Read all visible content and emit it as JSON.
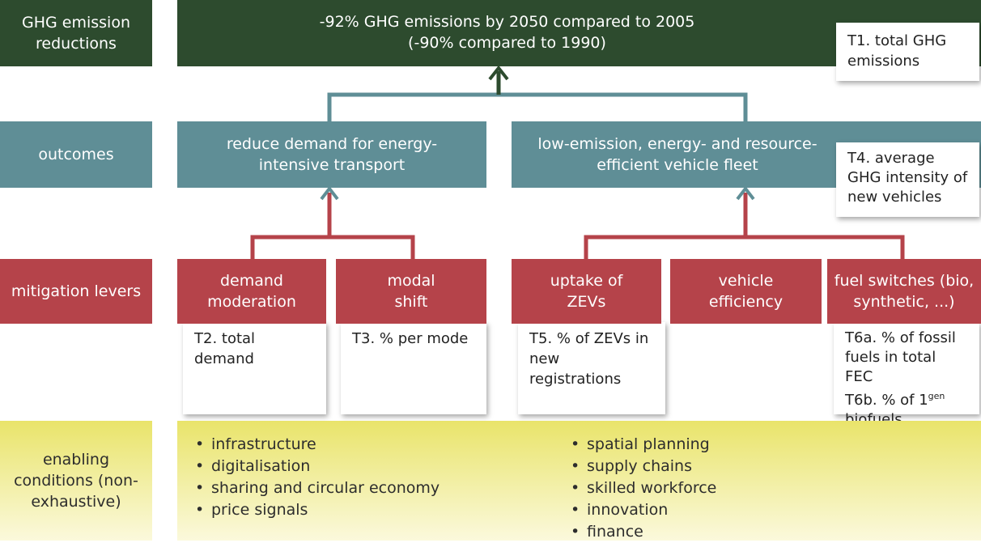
{
  "rows": {
    "ghg": {
      "label": "GHG emission reductions",
      "box": {
        "line1": "-92% GHG emissions by 2050 compared to 2005",
        "line2": "(-90% compared to 1990)"
      },
      "indicator": "T1. total GHG emissions"
    },
    "outcomes": {
      "label": "outcomes",
      "boxes": [
        "reduce demand for energy-intensive transport",
        "low-emission, energy- and resource-efficient vehicle fleet"
      ],
      "indicator": "T4. average GHG intensity of new vehicles"
    },
    "levers": {
      "label": "mitigation levers",
      "boxes": [
        "demand moderation",
        "modal shift",
        "uptake of ZEVs",
        "vehicle efficiency",
        "fuel switches (bio, synthetic, ...)"
      ],
      "indicators": {
        "t2": "T2. total demand",
        "t3": "T3. % per mode",
        "t5": "T5. % of ZEVs in new registrations",
        "t6a": "T6a. % of fossil fuels in total FEC",
        "t6b_pre": "T6b. % of 1",
        "t6b_sup": "gen",
        "t6b_post": "biofuels"
      }
    },
    "enabling": {
      "label": "enabling conditions (non-exhaustive)",
      "left": [
        "infrastructure",
        "digitalisation",
        "sharing and circular economy",
        "price signals"
      ],
      "right": [
        "spatial planning",
        "supply chains",
        "skilled workforce",
        "innovation",
        "finance"
      ]
    }
  }
}
